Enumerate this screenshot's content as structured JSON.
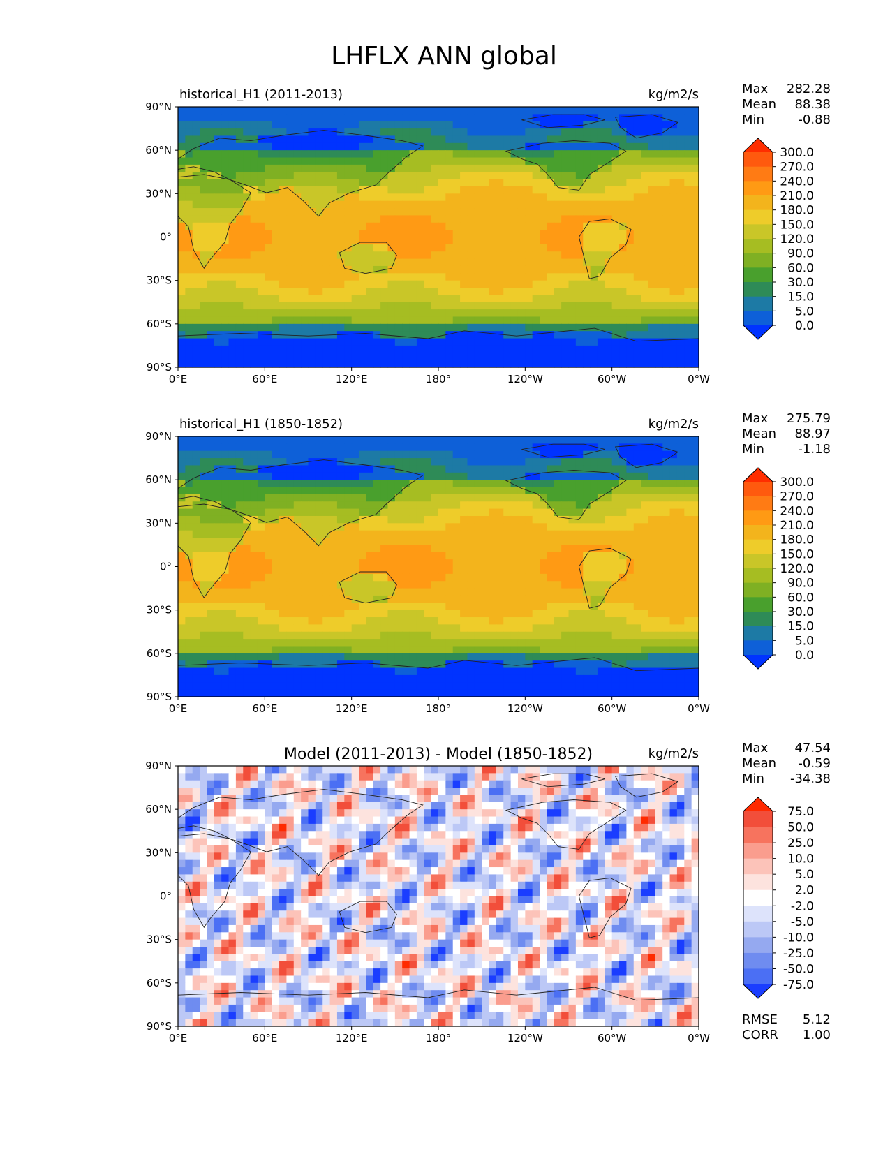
{
  "figure": {
    "title": "LHFLX ANN global"
  },
  "axes": {
    "lat_ticks": [
      "90°N",
      "60°N",
      "30°N",
      "0°",
      "30°S",
      "60°S",
      "90°S"
    ],
    "lon_ticks": [
      "0°E",
      "60°E",
      "120°E",
      "180°",
      "120°W",
      "60°W",
      "0°W"
    ]
  },
  "chart_data": [
    {
      "type": "heatmap",
      "title": "historical_H1 (2011-2013)",
      "units": "kg/m2/s",
      "stats": [
        {
          "label": "Max",
          "value": "282.28"
        },
        {
          "label": "Mean",
          "value": "88.38"
        },
        {
          "label": "Min",
          "value": "-0.88"
        }
      ],
      "colorbar": {
        "levels": [
          "300.0",
          "270.0",
          "240.0",
          "210.0",
          "180.0",
          "150.0",
          "120.0",
          "90.0",
          "60.0",
          "30.0",
          "15.0",
          "5.0",
          "0.0"
        ],
        "colors": [
          "#ff2e00",
          "#ff5a0e",
          "#ff7b14",
          "#ff9a14",
          "#f3b41c",
          "#eecc2a",
          "#c9c628",
          "#a6bd22",
          "#7fb023",
          "#49a02d",
          "#2e8b57",
          "#1d7aa5",
          "#0e60d8",
          "#0033ff"
        ]
      },
      "xlim": [
        "0°E",
        "0°W"
      ],
      "ylim": [
        "90°S",
        "90°N"
      ]
    },
    {
      "type": "heatmap",
      "title": "historical_H1 (1850-1852)",
      "units": "kg/m2/s",
      "stats": [
        {
          "label": "Max",
          "value": "275.79"
        },
        {
          "label": "Mean",
          "value": "88.97"
        },
        {
          "label": "Min",
          "value": "-1.18"
        }
      ],
      "colorbar": {
        "levels": [
          "300.0",
          "270.0",
          "240.0",
          "210.0",
          "180.0",
          "150.0",
          "120.0",
          "90.0",
          "60.0",
          "30.0",
          "15.0",
          "5.0",
          "0.0"
        ],
        "colors": [
          "#ff2e00",
          "#ff5a0e",
          "#ff7b14",
          "#ff9a14",
          "#f3b41c",
          "#eecc2a",
          "#c9c628",
          "#a6bd22",
          "#7fb023",
          "#49a02d",
          "#2e8b57",
          "#1d7aa5",
          "#0e60d8",
          "#0033ff"
        ]
      },
      "xlim": [
        "0°E",
        "0°W"
      ],
      "ylim": [
        "90°S",
        "90°N"
      ]
    },
    {
      "type": "heatmap",
      "title": "Model (2011-2013) - Model (1850-1852)",
      "units": "kg/m2/s",
      "stats": [
        {
          "label": "Max",
          "value": "47.54"
        },
        {
          "label": "Mean",
          "value": "-0.59"
        },
        {
          "label": "Min",
          "value": "-34.38"
        }
      ],
      "colorbar": {
        "levels": [
          "75.0",
          "50.0",
          "25.0",
          "10.0",
          "5.0",
          "2.0",
          "-2.0",
          "-5.0",
          "-10.0",
          "-25.0",
          "-50.0",
          "-75.0"
        ],
        "colors": [
          "#ff2a00",
          "#f24e3a",
          "#f7735e",
          "#fa9d8e",
          "#fcc3b9",
          "#fde3de",
          "#ffffff",
          "#dde3fb",
          "#bcc8f6",
          "#95a9f0",
          "#6f8cf0",
          "#4b6ff4",
          "#1a3dff"
        ]
      },
      "error_stats": [
        {
          "label": "RMSE",
          "value": "5.12"
        },
        {
          "label": "CORR",
          "value": "1.00"
        }
      ],
      "xlim": [
        "0°E",
        "0°W"
      ],
      "ylim": [
        "90°S",
        "90°N"
      ]
    }
  ]
}
